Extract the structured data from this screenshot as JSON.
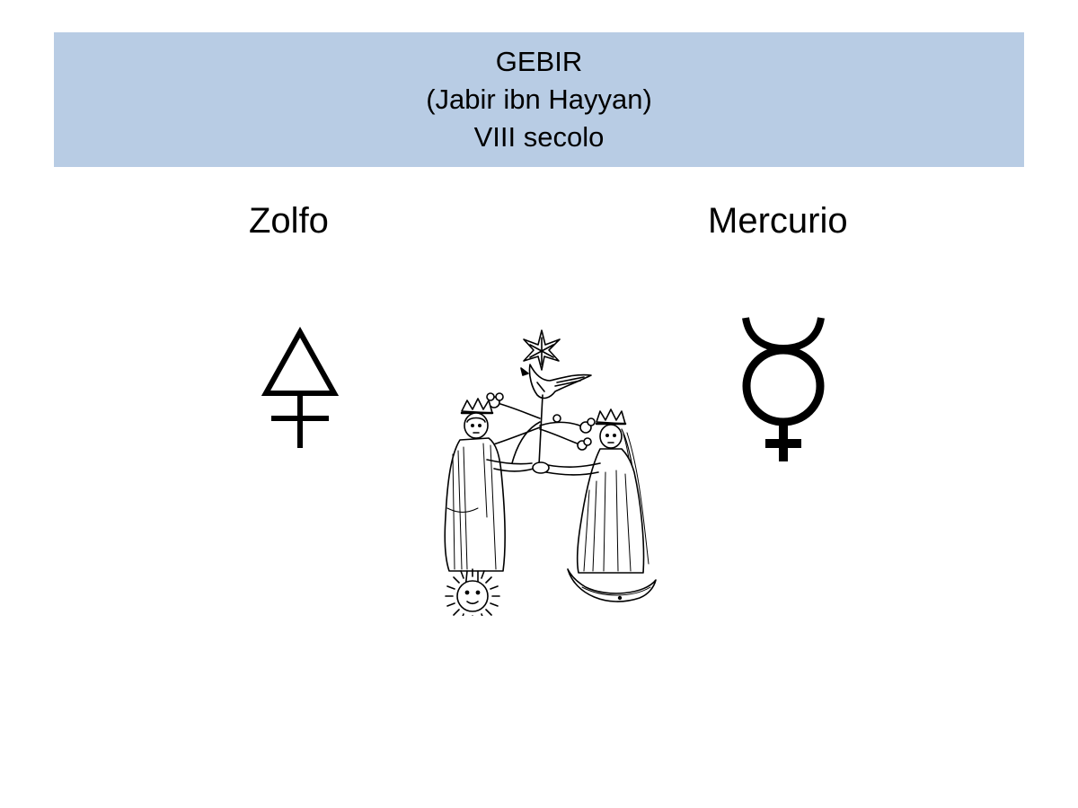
{
  "slide": {
    "title_lines": [
      "GEBIR",
      "(Jabir ibn Hayyan)",
      "VIII secolo"
    ],
    "left_label": "Zolfo",
    "right_label": "Mercurio",
    "banner_color": "#b8cce4"
  },
  "icons": {
    "left_symbol": "sulfur-symbol-icon",
    "right_symbol": "mercury-symbol-icon",
    "center_image": "alchemical-king-queen-woodcut"
  }
}
